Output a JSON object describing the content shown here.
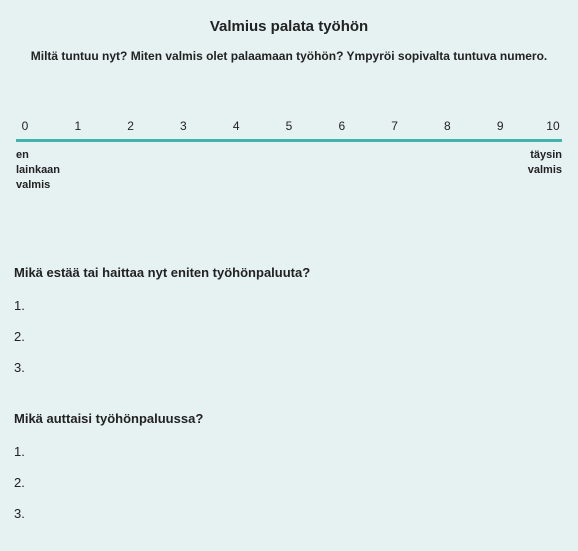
{
  "title": "Valmius palata työhön",
  "subtitle": "Miltä tuntuu nyt? Miten valmis olet palaamaan työhön? Ympyröi sopivalta tuntuva numero.",
  "scale": {
    "ticks": [
      "0",
      "1",
      "2",
      "3",
      "4",
      "5",
      "6",
      "7",
      "8",
      "9",
      "10"
    ],
    "anchor_left_line1": "en",
    "anchor_left_line2": "lainkaan",
    "anchor_left_line3": "valmis",
    "anchor_right_line1": "täysin",
    "anchor_right_line2": "valmis",
    "line_color": "#3fb5ad",
    "background_color": "#e6f1f1",
    "text_color": "#222222",
    "tick_fontsize": 12,
    "anchor_fontsize": 11
  },
  "q1": {
    "text": "Mikä estää tai haittaa nyt eniten työhönpaluuta?",
    "items": [
      "1.",
      "2.",
      "3."
    ]
  },
  "q2": {
    "text": "Mikä auttaisi työhönpaluussa?",
    "items": [
      "1.",
      "2.",
      "3."
    ]
  }
}
